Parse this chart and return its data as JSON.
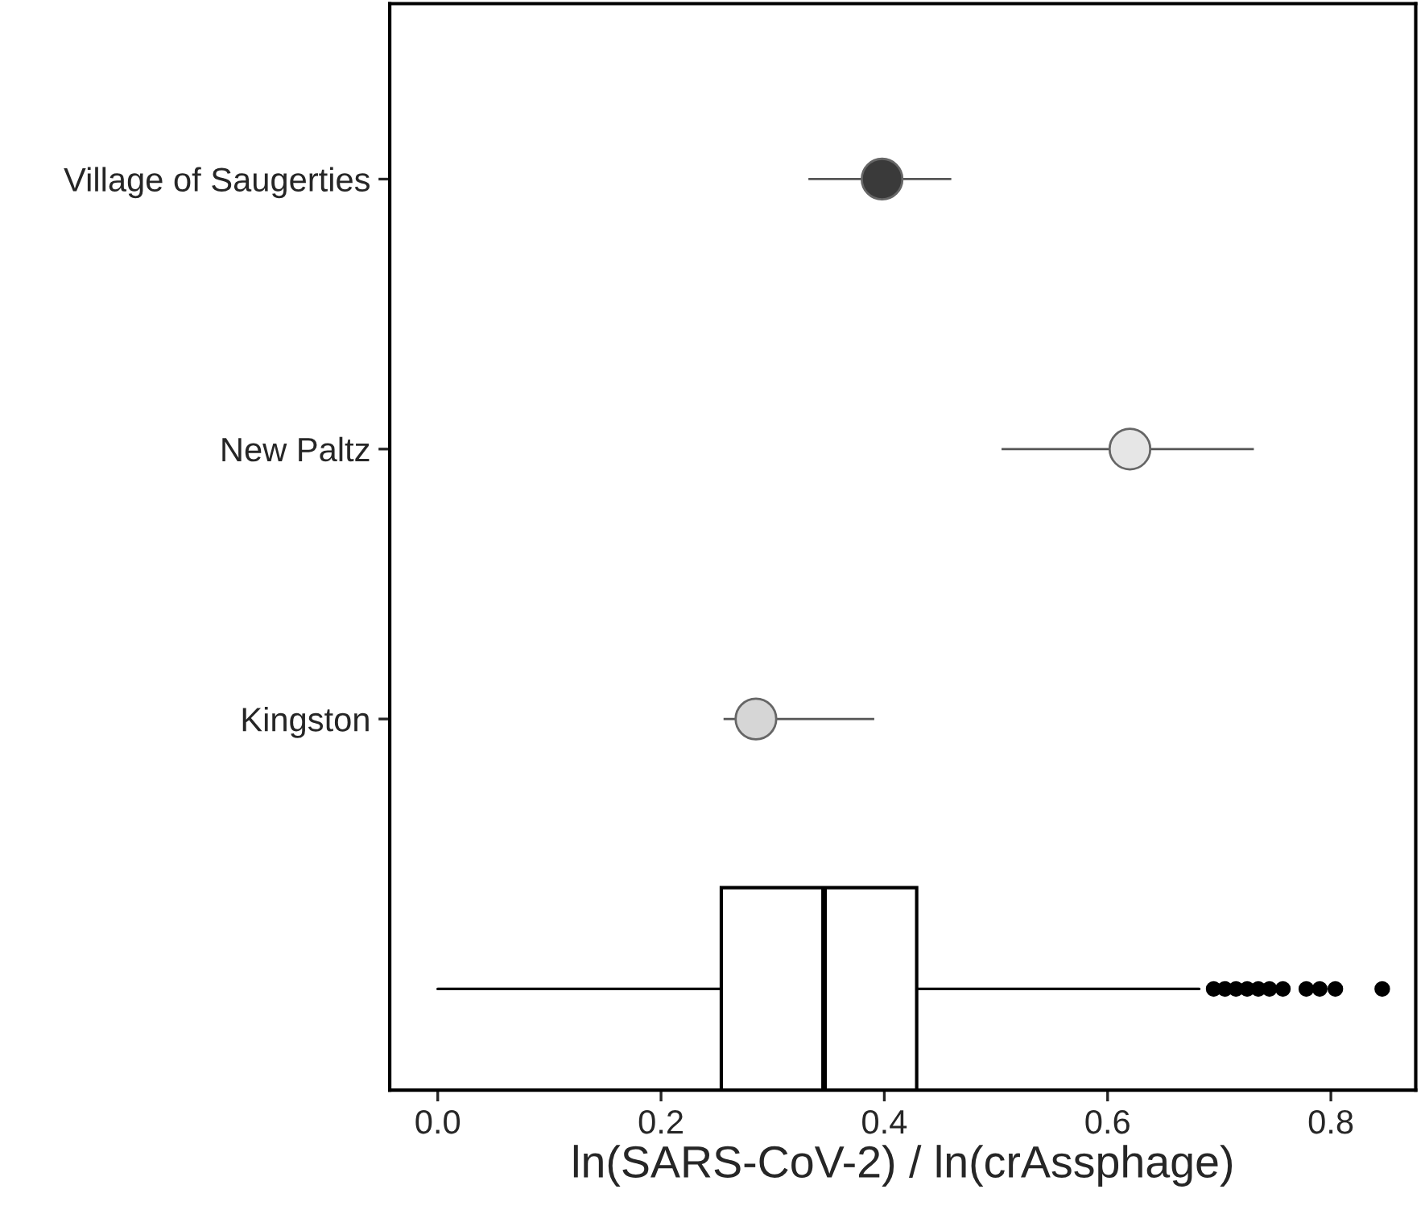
{
  "chart_data": {
    "type": "scatter",
    "orientation": "horizontal",
    "xlabel": "ln(SARS-CoV-2) / ln(crAssphage)",
    "categories": [
      "Village of Saugerties",
      "New Paltz",
      "Kingston",
      null
    ],
    "xlim": [
      -0.043,
      0.876
    ],
    "xticks": [
      {
        "value": 0,
        "label": "0.0"
      },
      0.2,
      0.4,
      0.6,
      0.8
    ],
    "grid": false,
    "legend": false,
    "marker": "circle",
    "series": [
      {
        "values": [
          0.398,
          0.62,
          0.285,
          null
        ],
        "errors": [
          [
            0.332,
            0.46
          ],
          [
            0.505,
            0.731
          ],
          [
            0.256,
            0.391
          ],
          null
        ],
        "colors": [
          "#3a3a3a",
          "#e6e6e6",
          "#d6d6d6",
          "#ffffff"
        ]
      },
      {
        "type": "box",
        "color": "#ffffff",
        "boxes": [
          null,
          null,
          null,
          {
            "low": 0.0,
            "q1": 0.254,
            "median": 0.346,
            "q3": 0.429,
            "high": 0.682,
            "outliers": [
              0.695,
              0.705,
              0.715,
              0.725,
              0.735,
              0.745,
              0.757,
              0.778,
              0.79,
              0.804,
              0.846
            ]
          }
        ]
      }
    ]
  }
}
